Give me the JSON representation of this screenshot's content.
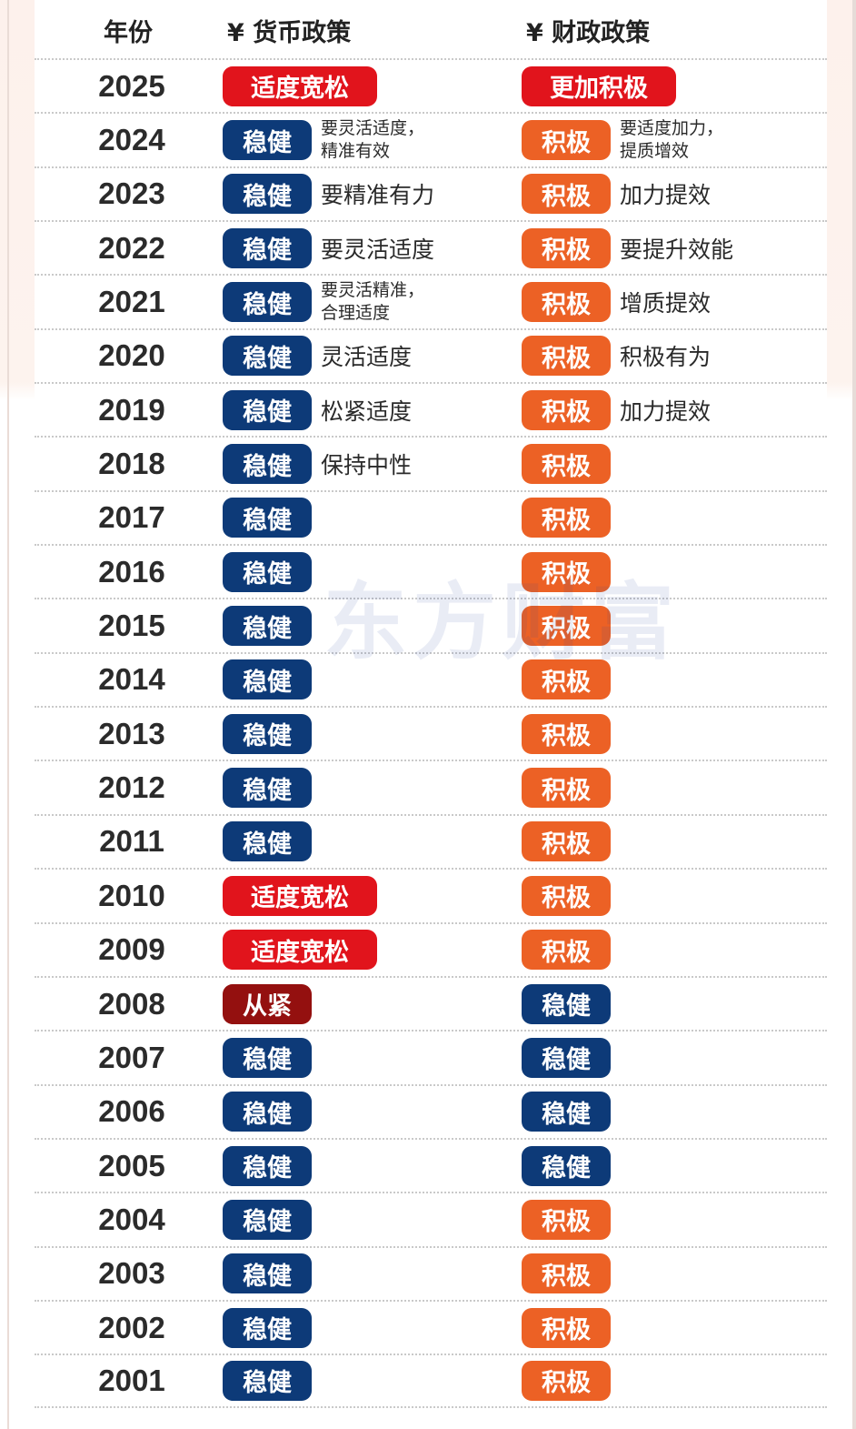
{
  "header": {
    "year_label": "年份",
    "monetary_label": "¥ 货币政策",
    "fiscal_label": "¥ 财政政策"
  },
  "watermark": "东方财富",
  "colors": {
    "steady_blue": "#0d3a78",
    "loose_red": "#e1141c",
    "tight_darkred": "#94100f",
    "active_orange": "#ec6125"
  },
  "rows": [
    {
      "year": "2025",
      "monetary": {
        "label": "适度宽松",
        "style": "red"
      },
      "monetary_note": [],
      "fiscal": {
        "label": "更加积极",
        "style": "red"
      },
      "fiscal_note": []
    },
    {
      "year": "2024",
      "monetary": {
        "label": "稳健",
        "style": "blue"
      },
      "monetary_note": [
        "要灵活适度，",
        "精准有效"
      ],
      "fiscal": {
        "label": "积极",
        "style": "orange"
      },
      "fiscal_note": [
        "要适度加力，",
        "提质增效"
      ]
    },
    {
      "year": "2023",
      "monetary": {
        "label": "稳健",
        "style": "blue"
      },
      "monetary_note": [
        "要精准有力"
      ],
      "fiscal": {
        "label": "积极",
        "style": "orange"
      },
      "fiscal_note": [
        "加力提效"
      ]
    },
    {
      "year": "2022",
      "monetary": {
        "label": "稳健",
        "style": "blue"
      },
      "monetary_note": [
        "要灵活适度"
      ],
      "fiscal": {
        "label": "积极",
        "style": "orange"
      },
      "fiscal_note": [
        "要提升效能"
      ]
    },
    {
      "year": "2021",
      "monetary": {
        "label": "稳健",
        "style": "blue"
      },
      "monetary_note": [
        "要灵活精准，",
        "合理适度"
      ],
      "fiscal": {
        "label": "积极",
        "style": "orange"
      },
      "fiscal_note": [
        "增质提效"
      ]
    },
    {
      "year": "2020",
      "monetary": {
        "label": "稳健",
        "style": "blue"
      },
      "monetary_note": [
        "灵活适度"
      ],
      "fiscal": {
        "label": "积极",
        "style": "orange"
      },
      "fiscal_note": [
        "积极有为"
      ]
    },
    {
      "year": "2019",
      "monetary": {
        "label": "稳健",
        "style": "blue"
      },
      "monetary_note": [
        "松紧适度"
      ],
      "fiscal": {
        "label": "积极",
        "style": "orange"
      },
      "fiscal_note": [
        "加力提效"
      ]
    },
    {
      "year": "2018",
      "monetary": {
        "label": "稳健",
        "style": "blue"
      },
      "monetary_note": [
        "保持中性"
      ],
      "fiscal": {
        "label": "积极",
        "style": "orange"
      },
      "fiscal_note": []
    },
    {
      "year": "2017",
      "monetary": {
        "label": "稳健",
        "style": "blue"
      },
      "monetary_note": [],
      "fiscal": {
        "label": "积极",
        "style": "orange"
      },
      "fiscal_note": []
    },
    {
      "year": "2016",
      "monetary": {
        "label": "稳健",
        "style": "blue"
      },
      "monetary_note": [],
      "fiscal": {
        "label": "积极",
        "style": "orange"
      },
      "fiscal_note": []
    },
    {
      "year": "2015",
      "monetary": {
        "label": "稳健",
        "style": "blue"
      },
      "monetary_note": [],
      "fiscal": {
        "label": "积极",
        "style": "orange"
      },
      "fiscal_note": []
    },
    {
      "year": "2014",
      "monetary": {
        "label": "稳健",
        "style": "blue"
      },
      "monetary_note": [],
      "fiscal": {
        "label": "积极",
        "style": "orange"
      },
      "fiscal_note": []
    },
    {
      "year": "2013",
      "monetary": {
        "label": "稳健",
        "style": "blue"
      },
      "monetary_note": [],
      "fiscal": {
        "label": "积极",
        "style": "orange"
      },
      "fiscal_note": []
    },
    {
      "year": "2012",
      "monetary": {
        "label": "稳健",
        "style": "blue"
      },
      "monetary_note": [],
      "fiscal": {
        "label": "积极",
        "style": "orange"
      },
      "fiscal_note": []
    },
    {
      "year": "2011",
      "monetary": {
        "label": "稳健",
        "style": "blue"
      },
      "monetary_note": [],
      "fiscal": {
        "label": "积极",
        "style": "orange"
      },
      "fiscal_note": []
    },
    {
      "year": "2010",
      "monetary": {
        "label": "适度宽松",
        "style": "red"
      },
      "monetary_note": [],
      "fiscal": {
        "label": "积极",
        "style": "orange"
      },
      "fiscal_note": []
    },
    {
      "year": "2009",
      "monetary": {
        "label": "适度宽松",
        "style": "red"
      },
      "monetary_note": [],
      "fiscal": {
        "label": "积极",
        "style": "orange"
      },
      "fiscal_note": []
    },
    {
      "year": "2008",
      "monetary": {
        "label": "从紧",
        "style": "dark"
      },
      "monetary_note": [],
      "fiscal": {
        "label": "稳健",
        "style": "blue"
      },
      "fiscal_note": []
    },
    {
      "year": "2007",
      "monetary": {
        "label": "稳健",
        "style": "blue"
      },
      "monetary_note": [],
      "fiscal": {
        "label": "稳健",
        "style": "blue"
      },
      "fiscal_note": []
    },
    {
      "year": "2006",
      "monetary": {
        "label": "稳健",
        "style": "blue"
      },
      "monetary_note": [],
      "fiscal": {
        "label": "稳健",
        "style": "blue"
      },
      "fiscal_note": []
    },
    {
      "year": "2005",
      "monetary": {
        "label": "稳健",
        "style": "blue"
      },
      "monetary_note": [],
      "fiscal": {
        "label": "稳健",
        "style": "blue"
      },
      "fiscal_note": []
    },
    {
      "year": "2004",
      "monetary": {
        "label": "稳健",
        "style": "blue"
      },
      "monetary_note": [],
      "fiscal": {
        "label": "积极",
        "style": "orange"
      },
      "fiscal_note": []
    },
    {
      "year": "2003",
      "monetary": {
        "label": "稳健",
        "style": "blue"
      },
      "monetary_note": [],
      "fiscal": {
        "label": "积极",
        "style": "orange"
      },
      "fiscal_note": []
    },
    {
      "year": "2002",
      "monetary": {
        "label": "稳健",
        "style": "blue"
      },
      "monetary_note": [],
      "fiscal": {
        "label": "积极",
        "style": "orange"
      },
      "fiscal_note": []
    },
    {
      "year": "2001",
      "monetary": {
        "label": "稳健",
        "style": "blue"
      },
      "monetary_note": [],
      "fiscal": {
        "label": "积极",
        "style": "orange"
      },
      "fiscal_note": []
    }
  ]
}
